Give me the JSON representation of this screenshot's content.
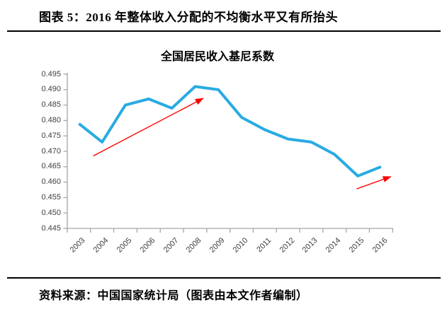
{
  "page": {
    "header_title": "图表 5：2016 年整体收入分配的不均衡水平又有所抬头",
    "source_note": "资料来源：中国国家统计局（图表由本文作者编制）"
  },
  "chart_data": {
    "type": "line",
    "title": "全国居民收入基尼系数",
    "categories": [
      "2003",
      "2004",
      "2005",
      "2006",
      "2007",
      "2008",
      "2009",
      "2010",
      "2011",
      "2012",
      "2013",
      "2014",
      "2015",
      "2016"
    ],
    "series": [
      {
        "name": "全国居民收入基尼系数",
        "values": [
          0.479,
          0.473,
          0.485,
          0.487,
          0.484,
          0.491,
          0.49,
          0.481,
          0.477,
          0.474,
          0.473,
          0.469,
          0.462,
          0.465
        ]
      }
    ],
    "xlabel": "",
    "ylabel": "",
    "ylim": [
      0.445,
      0.495
    ],
    "ytick_step": 0.005,
    "ytick_labels": [
      "0.495",
      "0.490",
      "0.485",
      "0.480",
      "0.475",
      "0.470",
      "0.465",
      "0.460",
      "0.455",
      "0.450",
      "0.445"
    ],
    "grid": false,
    "legend": "none",
    "line_color": "#29ABE2",
    "axis_color": "#A6A6A6",
    "annotation_color": "#FF0000",
    "annotations": [
      {
        "type": "arrow",
        "from": {
          "x": 2003.62,
          "y": 0.4685
        },
        "to": {
          "x": 2008.35,
          "y": 0.4872
        }
      },
      {
        "type": "arrow",
        "from": {
          "x": 2014.95,
          "y": 0.4578
        },
        "to": {
          "x": 2016.42,
          "y": 0.4618
        }
      }
    ]
  }
}
